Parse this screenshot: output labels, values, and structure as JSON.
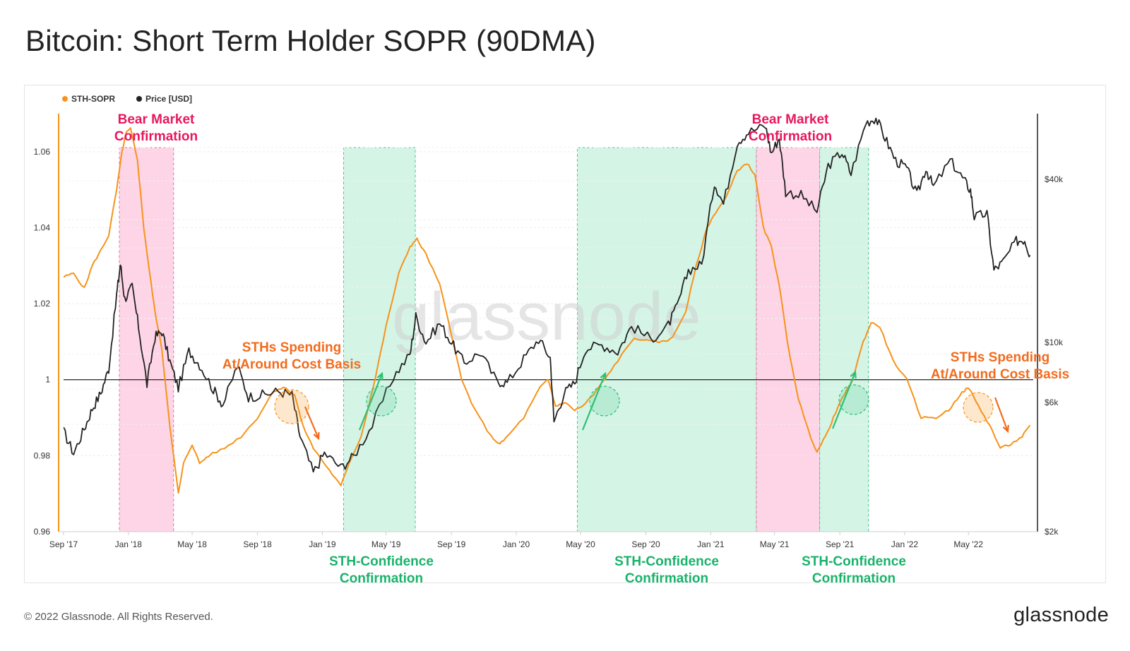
{
  "page": {
    "title": "Bitcoin: Short Term Holder SOPR (90DMA)",
    "copyright": "© 2022 Glassnode. All Rights Reserved.",
    "brand": "glassnode",
    "watermark": "glassnode"
  },
  "chart_data": {
    "type": "line",
    "title": "Bitcoin: Short Term Holder SOPR (90DMA)",
    "xlabel": "",
    "ylabel": "",
    "x_ticks": [
      "Sep '17",
      "Jan '18",
      "May '18",
      "Sep '18",
      "Jan '19",
      "May '19",
      "Sep '19",
      "Jan '20",
      "May '20",
      "Sep '20",
      "Jan '21",
      "May '21",
      "Sep '21",
      "Jan '22",
      "May '22"
    ],
    "x_range": [
      "2017-09-01",
      "2022-08-31"
    ],
    "y_left": {
      "ticks": [
        "0.96",
        "0.98",
        "1",
        "1.02",
        "1.04",
        "1.06"
      ],
      "range": [
        0.96,
        1.07
      ],
      "reference_line": 1
    },
    "y_right": {
      "ticks": [
        "$2k",
        "$6k",
        "$10k",
        "$40k"
      ],
      "range": [
        2000,
        70000
      ],
      "scale": "log"
    },
    "legend": {
      "placement": "top-left",
      "entries": [
        "STH-SOPR",
        "Price [USD]"
      ]
    },
    "grid": "horizontal dashed",
    "series": [
      {
        "name": "STH-SOPR",
        "axis": "left",
        "color": "#f7931a",
        "points": [
          [
            "2017-09-01",
            1.027
          ],
          [
            "2017-09-20",
            1.028
          ],
          [
            "2017-10-10",
            1.024
          ],
          [
            "2017-10-25",
            1.03
          ],
          [
            "2017-11-10",
            1.034
          ],
          [
            "2017-11-25",
            1.038
          ],
          [
            "2017-12-10",
            1.05
          ],
          [
            "2017-12-20",
            1.06
          ],
          [
            "2017-12-28",
            1.065
          ],
          [
            "2018-01-05",
            1.066
          ],
          [
            "2018-01-18",
            1.058
          ],
          [
            "2018-01-30",
            1.04
          ],
          [
            "2018-02-10",
            1.028
          ],
          [
            "2018-02-20",
            1.018
          ],
          [
            "2018-03-05",
            1.008
          ],
          [
            "2018-03-20",
            0.988
          ],
          [
            "2018-04-05",
            0.97
          ],
          [
            "2018-04-15",
            0.978
          ],
          [
            "2018-05-01",
            0.983
          ],
          [
            "2018-05-15",
            0.978
          ],
          [
            "2018-06-01",
            0.98
          ],
          [
            "2018-07-01",
            0.982
          ],
          [
            "2018-08-01",
            0.985
          ],
          [
            "2018-09-01",
            0.99
          ],
          [
            "2018-10-01",
            0.997
          ],
          [
            "2018-10-20",
            0.998
          ],
          [
            "2018-11-10",
            0.996
          ],
          [
            "2018-11-25",
            0.988
          ],
          [
            "2018-12-15",
            0.982
          ],
          [
            "2019-01-15",
            0.976
          ],
          [
            "2019-02-05",
            0.972
          ],
          [
            "2019-02-20",
            0.978
          ],
          [
            "2019-03-15",
            0.985
          ],
          [
            "2019-04-10",
            1.0
          ],
          [
            "2019-05-01",
            1.014
          ],
          [
            "2019-05-25",
            1.028
          ],
          [
            "2019-06-15",
            1.035
          ],
          [
            "2019-06-28",
            1.037
          ],
          [
            "2019-07-15",
            1.033
          ],
          [
            "2019-08-10",
            1.025
          ],
          [
            "2019-09-01",
            1.012
          ],
          [
            "2019-09-20",
            1.0
          ],
          [
            "2019-10-15",
            0.992
          ],
          [
            "2019-11-15",
            0.985
          ],
          [
            "2019-12-01",
            0.983
          ],
          [
            "2019-12-15",
            0.985
          ],
          [
            "2020-01-15",
            0.99
          ],
          [
            "2020-02-15",
            0.998
          ],
          [
            "2020-03-01",
            1.0
          ],
          [
            "2020-03-15",
            0.993
          ],
          [
            "2020-04-01",
            0.994
          ],
          [
            "2020-04-20",
            0.992
          ],
          [
            "2020-05-05",
            0.993
          ],
          [
            "2020-05-25",
            0.996
          ],
          [
            "2020-06-15",
            1.0
          ],
          [
            "2020-07-10",
            1.005
          ],
          [
            "2020-08-10",
            1.011
          ],
          [
            "2020-09-10",
            1.01
          ],
          [
            "2020-10-10",
            1.01
          ],
          [
            "2020-10-25",
            1.012
          ],
          [
            "2020-11-15",
            1.018
          ],
          [
            "2020-12-05",
            1.03
          ],
          [
            "2020-12-25",
            1.04
          ],
          [
            "2021-01-10",
            1.044
          ],
          [
            "2021-01-30",
            1.048
          ],
          [
            "2021-02-20",
            1.055
          ],
          [
            "2021-03-10",
            1.057
          ],
          [
            "2021-03-25",
            1.054
          ],
          [
            "2021-04-10",
            1.04
          ],
          [
            "2021-04-25",
            1.035
          ],
          [
            "2021-05-10",
            1.025
          ],
          [
            "2021-05-25",
            1.01
          ],
          [
            "2021-06-15",
            0.995
          ],
          [
            "2021-07-05",
            0.986
          ],
          [
            "2021-07-20",
            0.981
          ],
          [
            "2021-08-05",
            0.985
          ],
          [
            "2021-08-20",
            0.99
          ],
          [
            "2021-09-05",
            0.995
          ],
          [
            "2021-09-25",
            1.0
          ],
          [
            "2021-10-15",
            1.01
          ],
          [
            "2021-10-30",
            1.015
          ],
          [
            "2021-11-15",
            1.014
          ],
          [
            "2021-12-10",
            1.005
          ],
          [
            "2022-01-05",
            1.0
          ],
          [
            "2022-02-01",
            0.99
          ],
          [
            "2022-03-01",
            0.99
          ],
          [
            "2022-03-25",
            0.992
          ],
          [
            "2022-04-15",
            0.996
          ],
          [
            "2022-05-01",
            0.998
          ],
          [
            "2022-05-20",
            0.993
          ],
          [
            "2022-06-10",
            0.988
          ],
          [
            "2022-06-30",
            0.982
          ],
          [
            "2022-07-20",
            0.983
          ],
          [
            "2022-08-10",
            0.985
          ],
          [
            "2022-08-25",
            0.988
          ]
        ]
      },
      {
        "name": "Price [USD]",
        "axis": "right",
        "color": "#222222",
        "points": [
          [
            "2017-09-01",
            4700
          ],
          [
            "2017-09-20",
            3900
          ],
          [
            "2017-10-10",
            4800
          ],
          [
            "2017-10-25",
            5700
          ],
          [
            "2017-11-10",
            6500
          ],
          [
            "2017-11-25",
            8000
          ],
          [
            "2017-12-10",
            15000
          ],
          [
            "2017-12-17",
            19500
          ],
          [
            "2017-12-25",
            14500
          ],
          [
            "2018-01-08",
            16000
          ],
          [
            "2018-01-20",
            11500
          ],
          [
            "2018-02-05",
            7000
          ],
          [
            "2018-02-20",
            10500
          ],
          [
            "2018-03-05",
            11000
          ],
          [
            "2018-03-20",
            8500
          ],
          [
            "2018-04-05",
            6800
          ],
          [
            "2018-04-25",
            9300
          ],
          [
            "2018-05-15",
            8300
          ],
          [
            "2018-06-10",
            6700
          ],
          [
            "2018-06-28",
            5900
          ],
          [
            "2018-07-25",
            8200
          ],
          [
            "2018-08-15",
            6300
          ],
          [
            "2018-09-10",
            6400
          ],
          [
            "2018-10-10",
            6600
          ],
          [
            "2018-11-05",
            6400
          ],
          [
            "2018-11-20",
            4500
          ],
          [
            "2018-12-15",
            3300
          ],
          [
            "2019-01-05",
            3900
          ],
          [
            "2019-02-05",
            3450
          ],
          [
            "2019-03-01",
            3800
          ],
          [
            "2019-04-05",
            4950
          ],
          [
            "2019-05-15",
            7500
          ],
          [
            "2019-06-15",
            9000
          ],
          [
            "2019-06-26",
            12500
          ],
          [
            "2019-07-15",
            10000
          ],
          [
            "2019-08-10",
            11800
          ],
          [
            "2019-09-01",
            10000
          ],
          [
            "2019-09-25",
            8400
          ],
          [
            "2019-10-25",
            9200
          ],
          [
            "2019-11-25",
            7200
          ],
          [
            "2019-12-15",
            7100
          ],
          [
            "2020-01-15",
            8700
          ],
          [
            "2020-02-12",
            10300
          ],
          [
            "2020-03-05",
            8800
          ],
          [
            "2020-03-12",
            5100
          ],
          [
            "2020-03-31",
            6500
          ],
          [
            "2020-04-20",
            7100
          ],
          [
            "2020-05-10",
            9500
          ],
          [
            "2020-06-10",
            9800
          ],
          [
            "2020-07-10",
            9250
          ],
          [
            "2020-08-05",
            11500
          ],
          [
            "2020-09-10",
            10300
          ],
          [
            "2020-10-10",
            11300
          ],
          [
            "2020-10-30",
            13600
          ],
          [
            "2020-11-20",
            18500
          ],
          [
            "2020-12-15",
            19400
          ],
          [
            "2021-01-08",
            39000
          ],
          [
            "2021-01-25",
            32500
          ],
          [
            "2021-02-20",
            55000
          ],
          [
            "2021-03-13",
            60000
          ],
          [
            "2021-04-14",
            63000
          ],
          [
            "2021-04-25",
            50000
          ],
          [
            "2021-05-10",
            57000
          ],
          [
            "2021-05-22",
            36000
          ],
          [
            "2021-06-20",
            35000
          ],
          [
            "2021-07-20",
            30500
          ],
          [
            "2021-08-10",
            45000
          ],
          [
            "2021-09-05",
            50500
          ],
          [
            "2021-09-22",
            42000
          ],
          [
            "2021-10-20",
            65000
          ],
          [
            "2021-11-08",
            67500
          ],
          [
            "2021-11-25",
            57000
          ],
          [
            "2021-12-15",
            47000
          ],
          [
            "2022-01-05",
            44000
          ],
          [
            "2022-01-24",
            35000
          ],
          [
            "2022-02-10",
            44000
          ],
          [
            "2022-02-24",
            37500
          ],
          [
            "2022-03-28",
            47000
          ],
          [
            "2022-04-20",
            40500
          ],
          [
            "2022-05-05",
            36500
          ],
          [
            "2022-05-12",
            29000
          ],
          [
            "2022-06-05",
            30000
          ],
          [
            "2022-06-18",
            18500
          ],
          [
            "2022-07-05",
            19800
          ],
          [
            "2022-07-30",
            23700
          ],
          [
            "2022-08-15",
            24000
          ],
          [
            "2022-08-25",
            21000
          ]
        ]
      }
    ],
    "highlight_bands": [
      {
        "kind": "bear",
        "start": "2017-12-15",
        "end": "2018-03-27",
        "label": "Bear Market Confirmation"
      },
      {
        "kind": "confidence",
        "start": "2019-02-10",
        "end": "2019-06-25"
      },
      {
        "kind": "confidence",
        "start": "2020-04-25",
        "end": "2021-03-28"
      },
      {
        "kind": "bear",
        "start": "2021-03-28",
        "end": "2021-07-25",
        "label": "Bear Market Confirmation"
      },
      {
        "kind": "confidence",
        "start": "2021-07-25",
        "end": "2021-10-25"
      }
    ],
    "annotations": {
      "bear_label": "Bear Market Confirmation",
      "confidence_label": "STH-Confidence Confirmation",
      "spending_label": "STHs Spending At/Around Cost Basis"
    }
  }
}
